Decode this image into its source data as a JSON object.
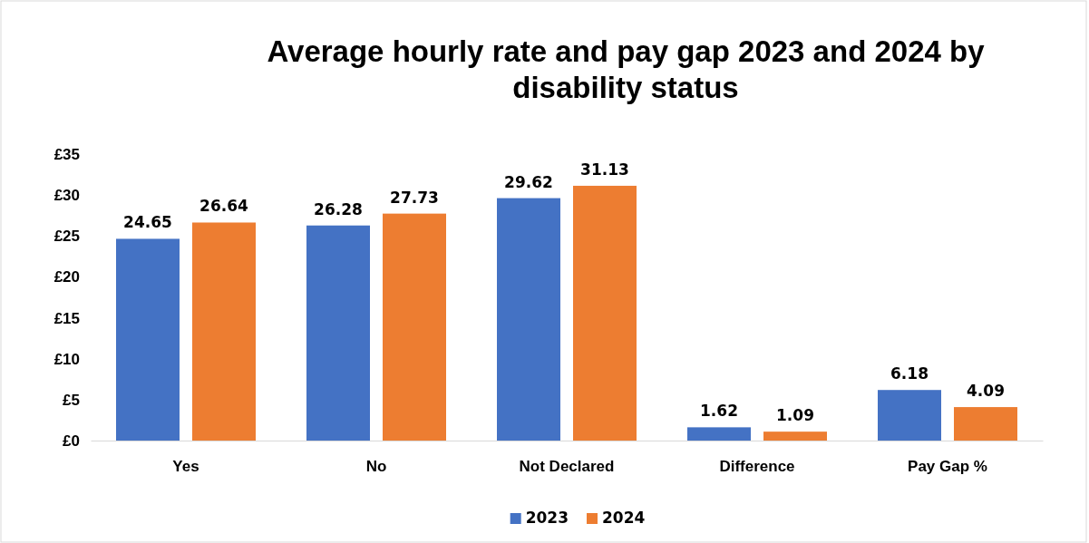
{
  "chart_data": {
    "type": "bar",
    "title": "Average hourly rate and pay gap 2023 and 2024 by disability status",
    "categories": [
      "Yes",
      "No",
      "Not Declared",
      "Difference",
      "Pay Gap %"
    ],
    "series": [
      {
        "name": "2023",
        "color": "#4472c4",
        "values": [
          24.65,
          26.28,
          29.62,
          1.62,
          6.18
        ]
      },
      {
        "name": "2024",
        "color": "#ed7d31",
        "values": [
          26.64,
          27.73,
          31.13,
          1.09,
          4.09
        ]
      }
    ],
    "ylim": [
      0,
      35
    ],
    "yticks": [
      {
        "value": 0,
        "label": "£0"
      },
      {
        "value": 5,
        "label": "£5"
      },
      {
        "value": 10,
        "label": "£10"
      },
      {
        "value": 15,
        "label": "£15"
      },
      {
        "value": 20,
        "label": "£20"
      },
      {
        "value": 25,
        "label": "£25"
      },
      {
        "value": 30,
        "label": "£30"
      },
      {
        "value": 35,
        "label": "£35"
      }
    ],
    "data_labels": true,
    "grid": false,
    "legend": "bottom"
  }
}
